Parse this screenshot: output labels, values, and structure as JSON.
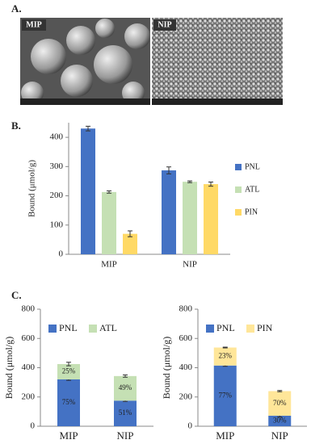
{
  "panel_labels": [
    "A.",
    "B.",
    "C."
  ],
  "panel_a": {
    "images": [
      {
        "label": "MIP"
      },
      {
        "label": "NIP"
      }
    ]
  },
  "chart_data": [
    {
      "type": "bar",
      "y_label": "Bound (μmol/g)",
      "categories": [
        "MIP",
        "NIP"
      ],
      "series": [
        {
          "name": "PNL",
          "color": "#4472c4",
          "values": [
            430,
            287
          ],
          "errors": [
            8,
            12
          ]
        },
        {
          "name": "ATL",
          "color": "#c5e0b4",
          "values": [
            213,
            248
          ],
          "errors": [
            4,
            3
          ]
        },
        {
          "name": "PIN",
          "color": "#ffd966",
          "values": [
            70,
            240
          ],
          "errors": [
            10,
            7
          ]
        }
      ],
      "ylim": [
        0,
        450
      ],
      "yticks": [
        0,
        100,
        200,
        300,
        400
      ],
      "legend": "right"
    },
    {
      "type": "stacked_bar",
      "y_label": "Bound (μmol/g)",
      "categories": [
        "MIP",
        "NIP"
      ],
      "series": [
        {
          "name": "PNL",
          "color": "#4472c4",
          "values": [
            320,
            175
          ],
          "errors": [
            6,
            5
          ],
          "segment_labels": [
            "75%",
            "51%"
          ]
        },
        {
          "name": "ATL",
          "color": "#c5e0b4",
          "values": [
            105,
            168
          ],
          "errors": [
            12,
            8
          ],
          "segment_labels": [
            "25%",
            "49%"
          ]
        }
      ],
      "ylim": [
        0,
        800
      ],
      "yticks": [
        0,
        200,
        400,
        600,
        800
      ],
      "legend": "top"
    },
    {
      "type": "stacked_bar",
      "y_label": "Bound (μmol/g)",
      "categories": [
        "MIP",
        "NIP"
      ],
      "series": [
        {
          "name": "PNL",
          "color": "#4472c4",
          "values": [
            415,
            72
          ],
          "errors": [
            5,
            8
          ],
          "segment_labels": [
            "77%",
            "30%"
          ]
        },
        {
          "name": "PIN",
          "color": "#ffe699",
          "values": [
            123,
            168
          ],
          "errors": [
            3,
            4
          ],
          "segment_labels": [
            "23%",
            "70%"
          ]
        }
      ],
      "ylim": [
        0,
        800
      ],
      "yticks": [
        0,
        200,
        400,
        600,
        800
      ],
      "legend": "top"
    }
  ]
}
